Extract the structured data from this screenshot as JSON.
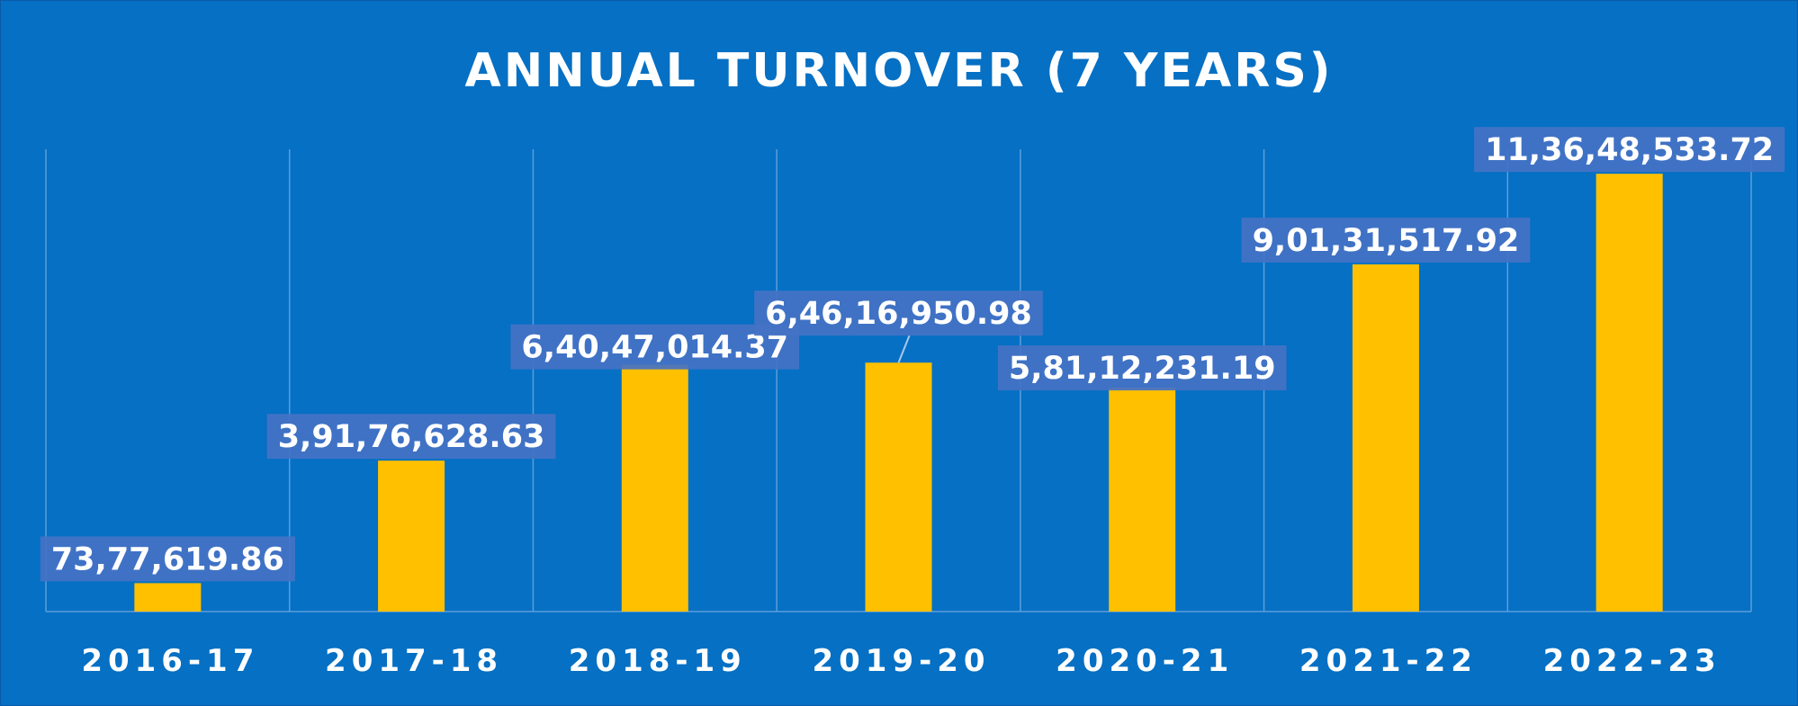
{
  "chart_data": {
    "type": "bar",
    "title": "ANNUAL TURNOVER (7 YEARS)",
    "xlabel": "",
    "ylabel": "",
    "categories": [
      "2016-17",
      "2017-18",
      "2018-19",
      "2019-20",
      "2020-21",
      "2021-22",
      "2022-23"
    ],
    "values": [
      7377619.86,
      39176628.63,
      64047014.37,
      64616950.98,
      58112231.19,
      90131517.92,
      113648533.72
    ],
    "data_labels": [
      "73,77,619.86",
      "3,91,76,628.63",
      "6,40,47,014.37",
      "6,46,16,950.98",
      "5,81,12,231.19",
      "9,01,31,517.92",
      "11,36,48,533.72"
    ],
    "ylim": [
      0,
      120000000
    ],
    "grid": "vertical category separators",
    "legend": "none",
    "colors": {
      "background": "#0570c4",
      "bar": "#ffc000",
      "label_box": "#4472c4",
      "text": "#ffffff",
      "gridline": "#5c9ddc"
    }
  }
}
